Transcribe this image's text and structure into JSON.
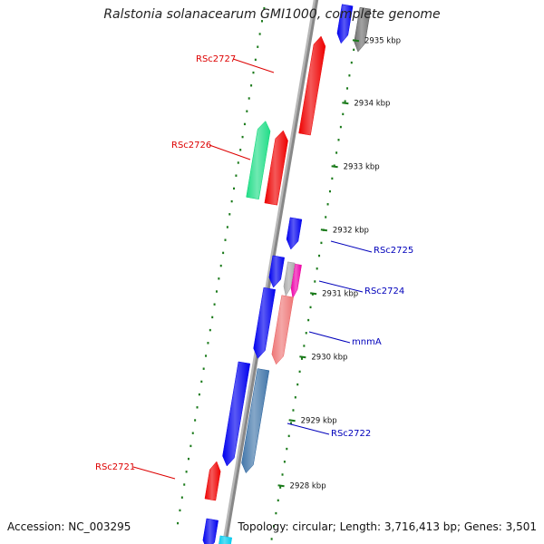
{
  "title": "Ralstonia solanacearum GMI1000, complete genome",
  "footer": {
    "accession": "Accession: NC_003295",
    "topology": "Topology: circular; Length: 3,716,413 bp; Genes: 3,501"
  },
  "colors": {
    "backbone": "#888888",
    "tick": "#1a7a1a",
    "label_fwd": "#dd0000",
    "label_rev": "#0000bb"
  },
  "ticks": [
    {
      "label": "2935 kbp"
    },
    {
      "label": "2934 kbp"
    },
    {
      "label": "2933 kbp"
    },
    {
      "label": "2932 kbp"
    },
    {
      "label": "2931 kbp"
    },
    {
      "label": "2930 kbp"
    },
    {
      "label": "2929 kbp"
    },
    {
      "label": "2928 kbp"
    }
  ],
  "genes": [
    {
      "id": "top-blue",
      "strand": "reverse",
      "color": "#0000ee"
    },
    {
      "id": "top-gray",
      "strand": "reverse",
      "color": "#707070"
    },
    {
      "id": "RSc2727",
      "strand": "forward",
      "color": "#ee0000"
    },
    {
      "id": "RSc2726-green",
      "strand": "forward",
      "color": "#22dd88"
    },
    {
      "id": "RSc2726",
      "strand": "forward",
      "color": "#ee0000"
    },
    {
      "id": "RSc2725",
      "strand": "reverse",
      "color": "#0000ee"
    },
    {
      "id": "gene-blue-b",
      "strand": "reverse",
      "color": "#0000ee"
    },
    {
      "id": "gene-gray-small",
      "strand": "reverse",
      "color": "#aaaaaa"
    },
    {
      "id": "RSc2724",
      "strand": "reverse",
      "color": "#ee00aa"
    },
    {
      "id": "gene-blue-c",
      "strand": "reverse",
      "color": "#0000ee"
    },
    {
      "id": "mnmA",
      "strand": "reverse",
      "color": "#ee7777"
    },
    {
      "id": "gene-blue-d",
      "strand": "reverse",
      "color": "#0000ee"
    },
    {
      "id": "RSc2722",
      "strand": "reverse",
      "color": "#4477aa"
    },
    {
      "id": "RSc2721",
      "strand": "forward",
      "color": "#ee0000"
    },
    {
      "id": "bottom-blue",
      "strand": "reverse",
      "color": "#0000ee"
    },
    {
      "id": "bottom-cyan",
      "strand": "reverse",
      "color": "#00ccee"
    }
  ],
  "labels": [
    {
      "text": "RSc2727",
      "strand": "forward"
    },
    {
      "text": "RSc2726",
      "strand": "forward"
    },
    {
      "text": "RSc2725",
      "strand": "reverse"
    },
    {
      "text": "RSc2724",
      "strand": "reverse"
    },
    {
      "text": "mnmA",
      "strand": "reverse"
    },
    {
      "text": "RSc2722",
      "strand": "reverse"
    },
    {
      "text": "RSc2721",
      "strand": "forward"
    }
  ]
}
